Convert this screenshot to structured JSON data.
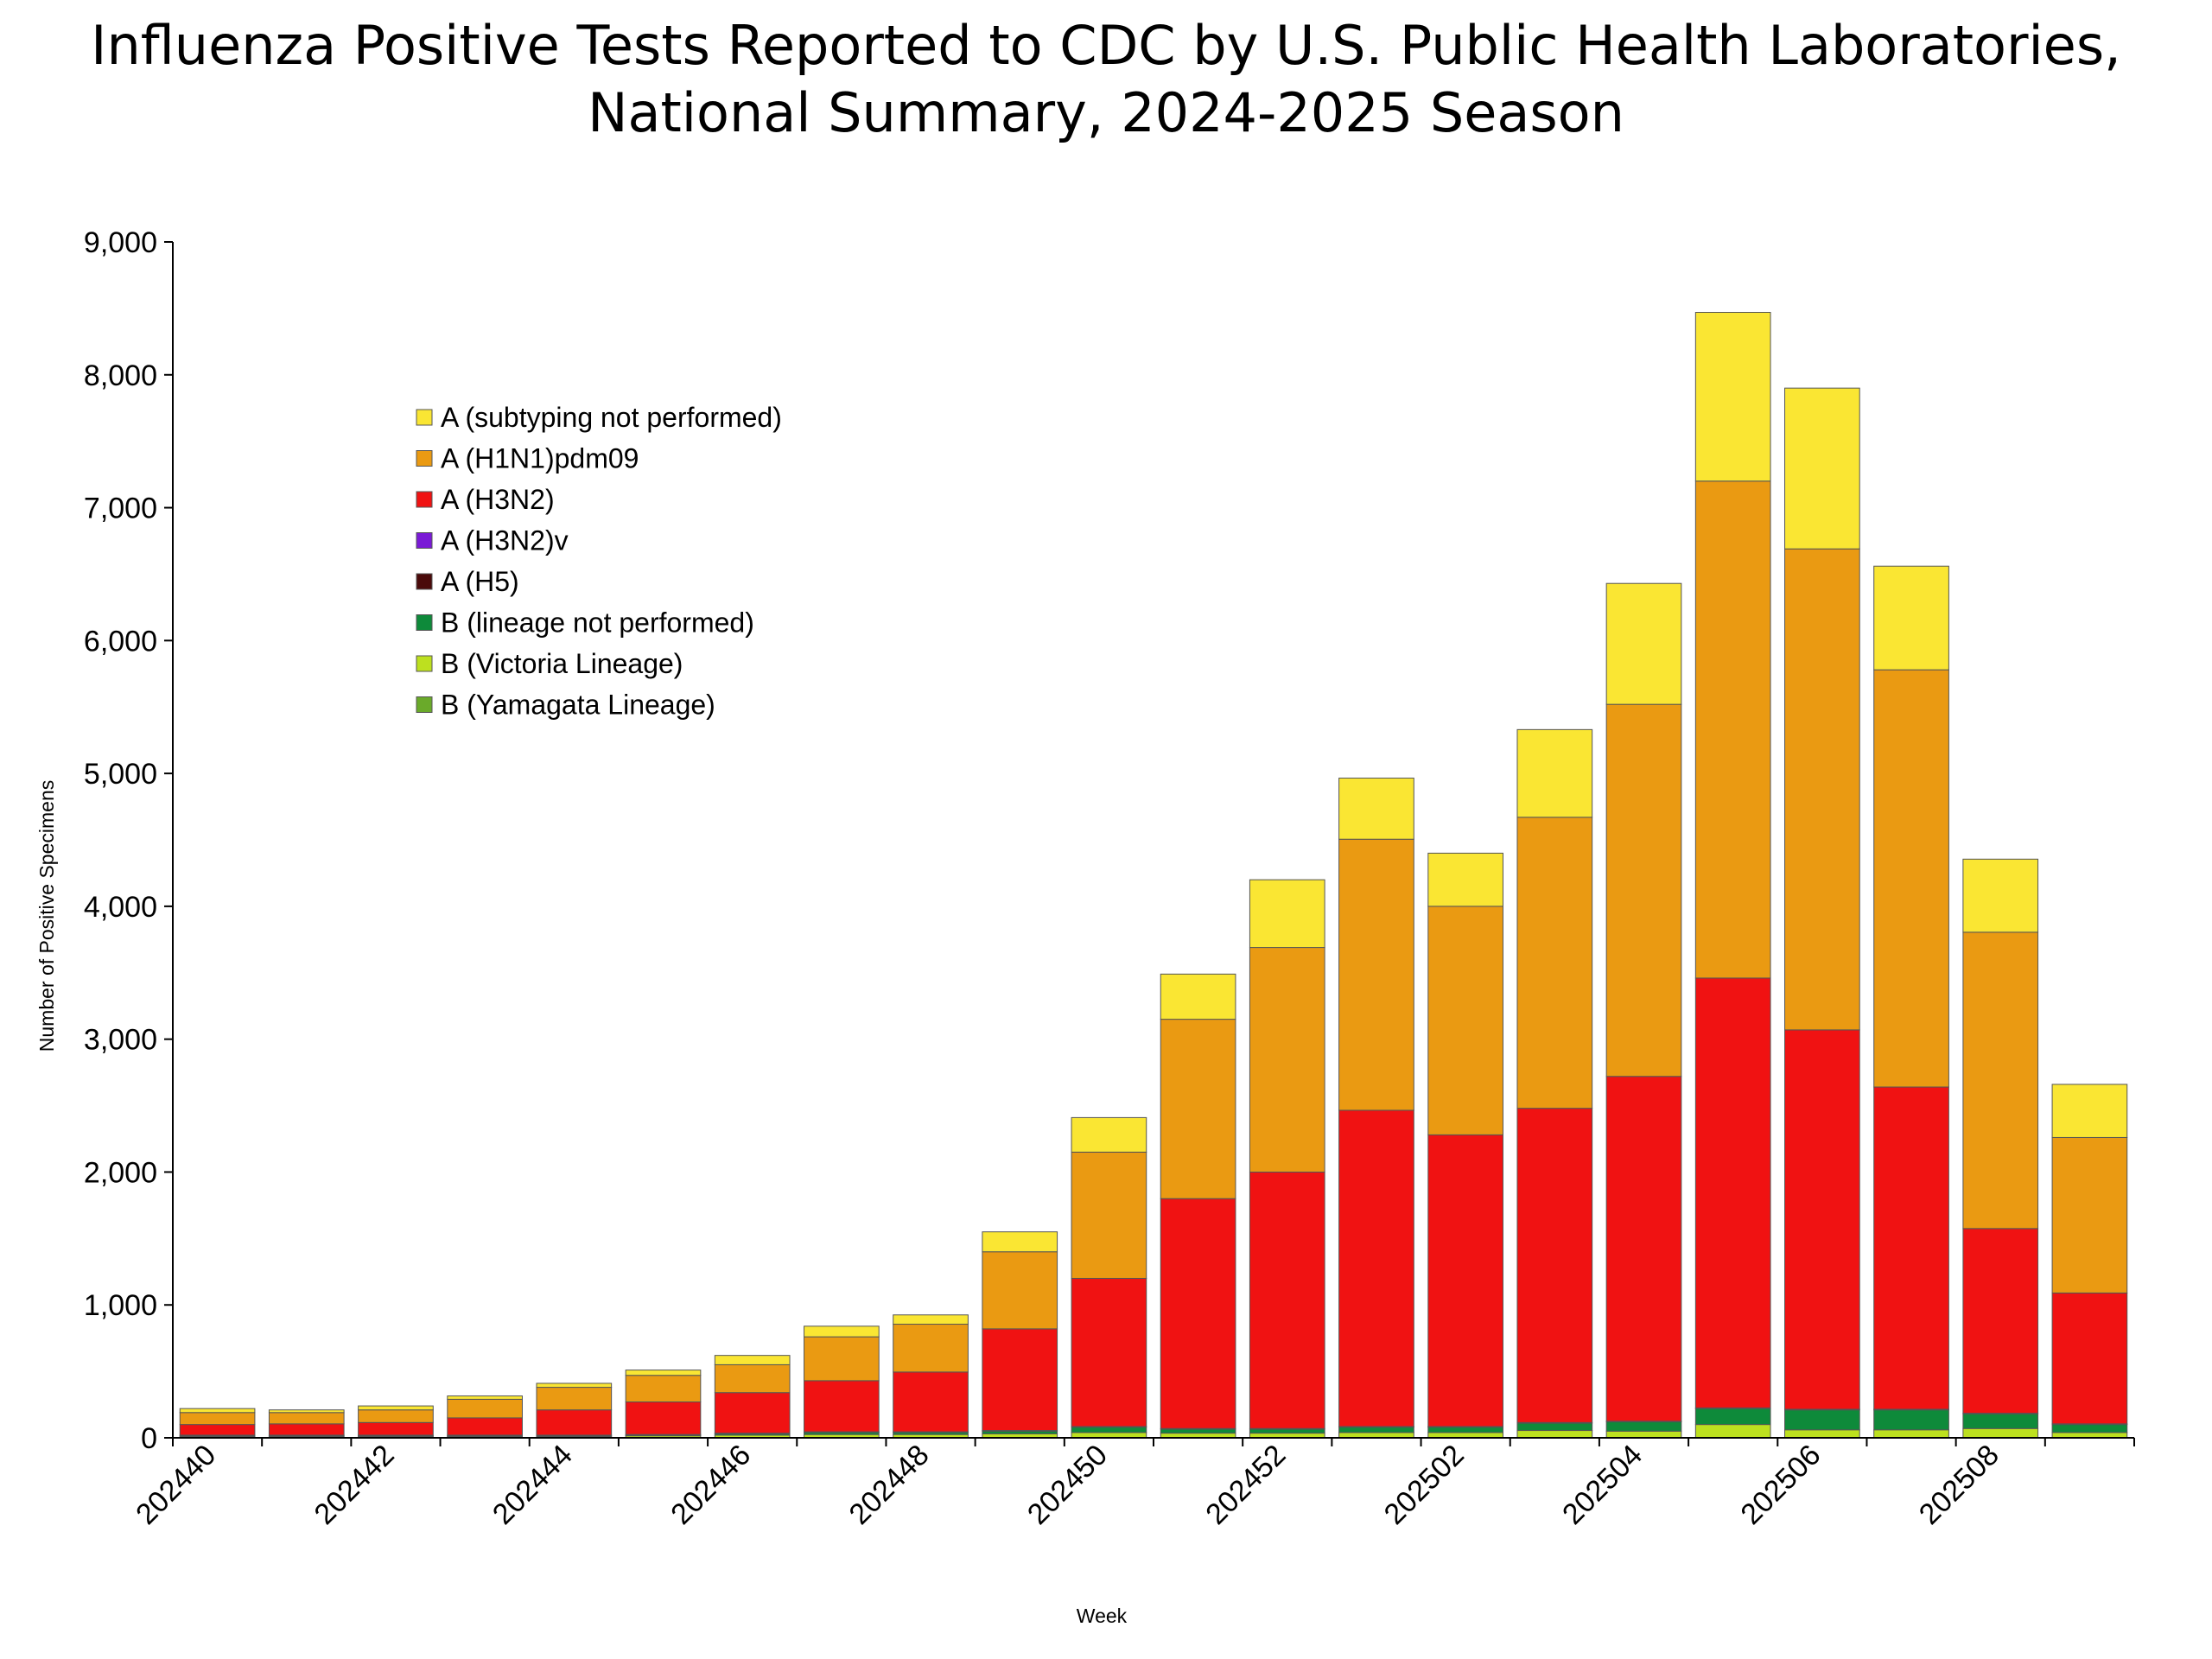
{
  "chart_data": {
    "type": "bar",
    "stacked": true,
    "title_lines": [
      "Influenza Positive Tests Reported to CDC by U.S. Public Health Laboratories,",
      "National Summary, 2024-2025 Season"
    ],
    "xlabel": "Week",
    "ylabel": "Number of Positive Specimens",
    "ylim": [
      0,
      9000
    ],
    "y_ticks": [
      "0",
      "1,000",
      "2,000",
      "3,000",
      "4,000",
      "5,000",
      "6,000",
      "7,000",
      "8,000",
      "9,000"
    ],
    "x_tick_labels": [
      "202440",
      "202442",
      "202444",
      "202446",
      "202448",
      "202450",
      "202452",
      "202502",
      "202504",
      "202506",
      "202508"
    ],
    "categories": [
      "202440",
      "202441",
      "202442",
      "202443",
      "202444",
      "202445",
      "202446",
      "202447",
      "202448",
      "202449",
      "202450",
      "202451",
      "202452",
      "202501",
      "202502",
      "202503",
      "202504",
      "202505",
      "202506",
      "202507",
      "202508",
      "202509"
    ],
    "legend_position": "upper-left",
    "legend": [
      "A (subtyping not performed)",
      "A (H1N1)pdm09",
      "A (H3N2)",
      "A (H3N2)v",
      "A (H5)",
      "B (lineage not performed)",
      "B (Victoria Lineage)",
      "B (Yamagata Lineage)"
    ],
    "series": [
      {
        "name": "B (Yamagata Lineage)",
        "color": "#6aaa2a",
        "values": [
          0,
          0,
          0,
          0,
          0,
          0,
          0,
          0,
          0,
          0,
          0,
          0,
          0,
          0,
          0,
          0,
          0,
          0,
          0,
          0,
          0,
          0
        ]
      },
      {
        "name": "B (Victoria Lineage)",
        "color": "#bde01f",
        "values": [
          10,
          10,
          10,
          10,
          10,
          15,
          20,
          25,
          25,
          30,
          40,
          35,
          35,
          40,
          40,
          55,
          50,
          100,
          60,
          60,
          70,
          40
        ]
      },
      {
        "name": "B (lineage not performed)",
        "color": "#0e8a3a",
        "values": [
          5,
          5,
          5,
          5,
          5,
          5,
          10,
          15,
          15,
          20,
          40,
          30,
          30,
          40,
          40,
          55,
          70,
          120,
          150,
          150,
          110,
          60
        ]
      },
      {
        "name": "A (H5)",
        "color": "#4a0a0a",
        "values": [
          5,
          5,
          5,
          5,
          5,
          5,
          5,
          5,
          5,
          5,
          5,
          5,
          5,
          5,
          5,
          5,
          5,
          5,
          5,
          5,
          5,
          5
        ]
      },
      {
        "name": "A (H3N2)v",
        "color": "#7a1ad6",
        "values": [
          0,
          0,
          0,
          0,
          0,
          0,
          0,
          0,
          0,
          0,
          0,
          0,
          0,
          0,
          0,
          0,
          0,
          0,
          0,
          0,
          0,
          0
        ]
      },
      {
        "name": "A (H3N2)",
        "color": "#f01212",
        "values": [
          80,
          85,
          95,
          130,
          190,
          245,
          305,
          385,
          450,
          765,
          1115,
          1730,
          1930,
          2380,
          2195,
          2365,
          2595,
          3235,
          2855,
          2425,
          1390,
          985
        ]
      },
      {
        "name": "A (H1N1)pdm09",
        "color": "#ea9a12",
        "values": [
          90,
          85,
          95,
          140,
          170,
          200,
          210,
          330,
          360,
          580,
          950,
          1350,
          1690,
          2040,
          1720,
          2190,
          2800,
          3740,
          3620,
          3140,
          2230,
          1170
        ]
      },
      {
        "name": "A (subtyping not performed)",
        "color": "#fae633",
        "values": [
          30,
          20,
          30,
          25,
          30,
          40,
          70,
          80,
          70,
          150,
          260,
          340,
          510,
          460,
          400,
          660,
          910,
          1270,
          1210,
          780,
          550,
          400
        ]
      }
    ]
  }
}
